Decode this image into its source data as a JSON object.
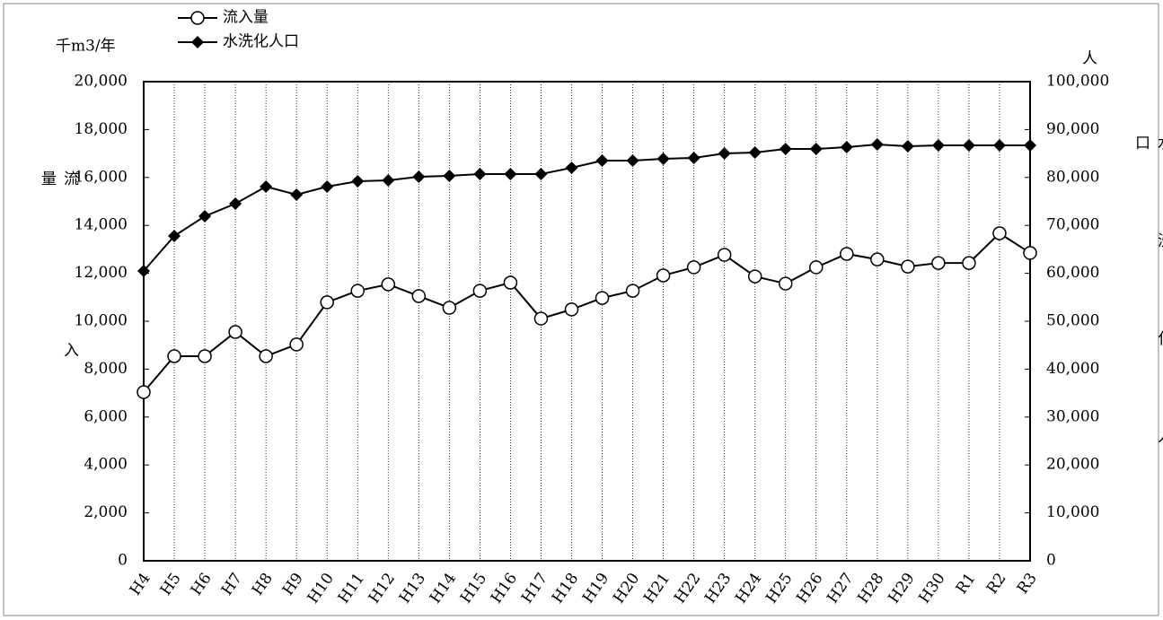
{
  "chart_data": {
    "type": "line",
    "y_unit_label": "千m3/年",
    "y_label": "流入量",
    "y2_unit_label": "人",
    "y2_label": "水洗化人口",
    "categories": [
      "H4",
      "H5",
      "H6",
      "H7",
      "H8",
      "H9",
      "H10",
      "H11",
      "H12",
      "H13",
      "H14",
      "H15",
      "H16",
      "H17",
      "H18",
      "H19",
      "H20",
      "H21",
      "H22",
      "H23",
      "H24",
      "H25",
      "H26",
      "H27",
      "H28",
      "H29",
      "H30",
      "R1",
      "R2",
      "R3"
    ],
    "series": [
      {
        "name": "流入量",
        "color": "#000000",
        "marker": "circle",
        "values": [
          7040,
          8540,
          8540,
          9550,
          8540,
          9030,
          10790,
          11270,
          11540,
          11050,
          10560,
          11270,
          11610,
          10110,
          10490,
          10970,
          11270,
          11910,
          12250,
          12770,
          11870,
          11570,
          12250,
          12810,
          12580,
          12280,
          12430,
          12430,
          13670,
          12850
        ]
      },
      {
        "name": "水洗化人口",
        "color": "#000000",
        "marker": "diamond",
        "axis": "y2",
        "values": [
          60490,
          67790,
          71910,
          74530,
          78090,
          76400,
          78090,
          79210,
          79400,
          80150,
          80340,
          80710,
          80710,
          80710,
          82020,
          83520,
          83520,
          83900,
          84080,
          85020,
          85210,
          85960,
          85960,
          86330,
          86890,
          86520,
          86700,
          86700,
          86700,
          86700
        ]
      }
    ],
    "ylim": [
      0,
      20000
    ],
    "yticks": [
      0,
      {
        "value": 2000,
        "label": "2,000"
      },
      {
        "value": 4000,
        "label": "4,000"
      },
      {
        "value": 6000,
        "label": "6,000"
      },
      {
        "value": 8000,
        "label": "8,000"
      },
      {
        "value": 10000,
        "label": "10,000"
      },
      {
        "value": 12000,
        "label": "12,000"
      },
      {
        "value": 14000,
        "label": "14,000"
      },
      {
        "value": 16000,
        "label": "16,000"
      },
      {
        "value": 18000,
        "label": "18,000"
      },
      {
        "value": 20000,
        "label": "20,000"
      }
    ],
    "y2lim": [
      0,
      100000
    ],
    "y2ticks": [
      0,
      {
        "value": 10000,
        "label": "10,000"
      },
      {
        "value": 20000,
        "label": "20,000"
      },
      {
        "value": 30000,
        "label": "30,000"
      },
      {
        "value": 40000,
        "label": "40,000"
      },
      {
        "value": 50000,
        "label": "50,000"
      },
      {
        "value": 60000,
        "label": "60,000"
      },
      {
        "value": 70000,
        "label": "70,000"
      },
      {
        "value": 80000,
        "label": "80,000"
      },
      {
        "value": 90000,
        "label": "90,000"
      },
      {
        "value": 100000,
        "label": "100,000"
      }
    ],
    "grid": true,
    "legend": "top-left"
  }
}
